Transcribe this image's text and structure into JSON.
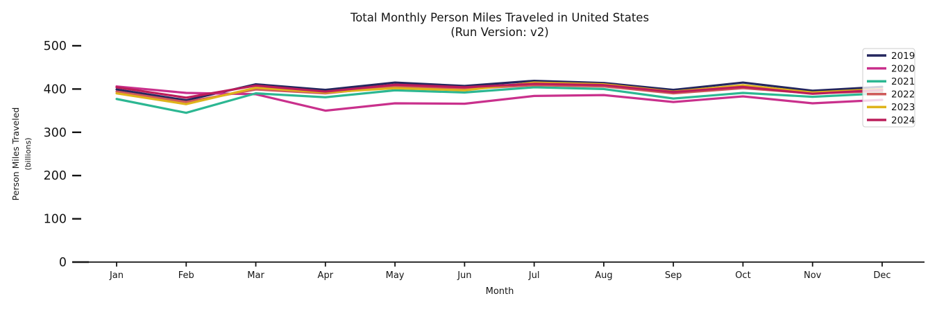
{
  "chart_data": {
    "type": "line",
    "title": "Total Monthly Person Miles Traveled in United States",
    "subtitle": "(Run Version: v2)",
    "xlabel": "Month",
    "ylabel": "Person Miles Traveled",
    "ylabel_sub": "(billions)",
    "categories": [
      "Jan",
      "Feb",
      "Mar",
      "Apr",
      "May",
      "Jun",
      "Jul",
      "Aug",
      "Sep",
      "Oct",
      "Nov",
      "Dec"
    ],
    "ylim": [
      0,
      500
    ],
    "yticks": [
      0,
      100,
      200,
      300,
      400,
      500
    ],
    "grid": false,
    "legend_position": "upper right",
    "series": [
      {
        "name": "2019",
        "color": "#24265e",
        "values": [
          399,
          374,
          411,
          398,
          415,
          407,
          419,
          414,
          398,
          415,
          396,
          405
        ]
      },
      {
        "name": "2020",
        "color": "#c9308c",
        "values": [
          406,
          391,
          388,
          350,
          367,
          366,
          384,
          386,
          370,
          383,
          367,
          375
        ]
      },
      {
        "name": "2021",
        "color": "#2cb792",
        "values": [
          377,
          345,
          390,
          381,
          397,
          392,
          404,
          400,
          378,
          391,
          382,
          390
        ]
      },
      {
        "name": "2022",
        "color": "#cf5a5a",
        "values": [
          394,
          370,
          399,
          390,
          406,
          400,
          409,
          406,
          390,
          402,
          390,
          395
        ]
      },
      {
        "name": "2023",
        "color": "#dfb31b",
        "values": [
          390,
          365,
          403,
          392,
          402,
          397,
          415,
          411,
          394,
          409,
          392,
          400
        ]
      },
      {
        "name": "2024",
        "color": "#bb1d5a",
        "values": [
          404,
          380,
          408,
          394,
          410,
          404,
          412,
          409,
          393,
          405,
          389,
          398
        ]
      }
    ],
    "axis_color": "#141414",
    "legend_border_color": "#cccccc",
    "legend_bg_color": "#ffffff"
  }
}
